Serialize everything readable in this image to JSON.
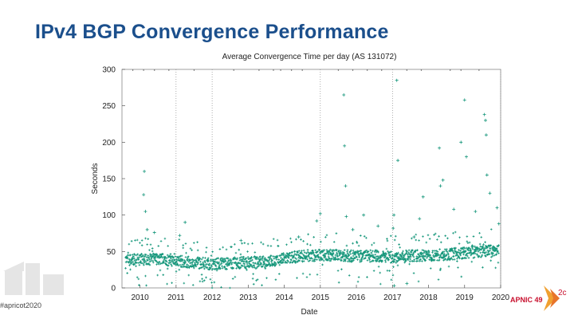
{
  "slide": {
    "title": "IPv4 BGP Convergence Performance",
    "hashtag": "#apricot2020",
    "logo_text": "APNIC 49",
    "corner_text": "2c",
    "accent_color": "#1b4f8c",
    "logo_color": "#c8102e"
  },
  "chart_data": {
    "type": "scatter",
    "title": "Average Convergence Time per day (AS 131072)",
    "xlabel": "Date",
    "ylabel": "Seconds",
    "xlim": [
      2009.5,
      2020.0
    ],
    "ylim": [
      0,
      300
    ],
    "x_ticks": [
      "2010",
      "2011",
      "2012",
      "2013",
      "2014",
      "2015",
      "2016",
      "2017",
      "2018",
      "2019",
      "2020"
    ],
    "y_ticks": [
      "0",
      "50",
      "100",
      "150",
      "200",
      "250",
      "300"
    ],
    "grid": "vertical dotted at selected year marks",
    "marker_color": "#14967a",
    "series": [
      {
        "name": "",
        "trend": [
          {
            "x": 2009.6,
            "y": 38
          },
          {
            "x": 2010.5,
            "y": 40
          },
          {
            "x": 2011.0,
            "y": 37
          },
          {
            "x": 2011.5,
            "y": 35
          },
          {
            "x": 2012.0,
            "y": 33
          },
          {
            "x": 2012.5,
            "y": 34
          },
          {
            "x": 2013.0,
            "y": 35
          },
          {
            "x": 2013.5,
            "y": 36
          },
          {
            "x": 2014.0,
            "y": 40
          },
          {
            "x": 2014.5,
            "y": 44
          },
          {
            "x": 2015.0,
            "y": 45
          },
          {
            "x": 2015.5,
            "y": 45
          },
          {
            "x": 2016.0,
            "y": 43
          },
          {
            "x": 2016.5,
            "y": 44
          },
          {
            "x": 2017.0,
            "y": 42
          },
          {
            "x": 2017.5,
            "y": 44
          },
          {
            "x": 2018.0,
            "y": 45
          },
          {
            "x": 2018.5,
            "y": 46
          },
          {
            "x": 2019.0,
            "y": 48
          },
          {
            "x": 2019.5,
            "y": 50
          },
          {
            "x": 2019.95,
            "y": 52
          }
        ],
        "outliers": [
          {
            "x": 2010.12,
            "y": 160
          },
          {
            "x": 2010.1,
            "y": 128
          },
          {
            "x": 2010.15,
            "y": 105
          },
          {
            "x": 2010.2,
            "y": 80
          },
          {
            "x": 2010.4,
            "y": 76
          },
          {
            "x": 2011.25,
            "y": 90
          },
          {
            "x": 2011.1,
            "y": 72
          },
          {
            "x": 2012.8,
            "y": 65
          },
          {
            "x": 2014.4,
            "y": 70
          },
          {
            "x": 2014.9,
            "y": 92
          },
          {
            "x": 2015.0,
            "y": 102
          },
          {
            "x": 2015.65,
            "y": 265
          },
          {
            "x": 2015.67,
            "y": 195
          },
          {
            "x": 2015.7,
            "y": 140
          },
          {
            "x": 2015.72,
            "y": 98
          },
          {
            "x": 2015.9,
            "y": 80
          },
          {
            "x": 2016.2,
            "y": 100
          },
          {
            "x": 2016.6,
            "y": 85
          },
          {
            "x": 2017.02,
            "y": 82
          },
          {
            "x": 2017.04,
            "y": 100
          },
          {
            "x": 2017.12,
            "y": 285
          },
          {
            "x": 2017.15,
            "y": 175
          },
          {
            "x": 2017.6,
            "y": 70
          },
          {
            "x": 2017.75,
            "y": 95
          },
          {
            "x": 2017.85,
            "y": 125
          },
          {
            "x": 2018.3,
            "y": 192
          },
          {
            "x": 2018.33,
            "y": 140
          },
          {
            "x": 2018.4,
            "y": 148
          },
          {
            "x": 2018.7,
            "y": 108
          },
          {
            "x": 2018.9,
            "y": 200
          },
          {
            "x": 2019.0,
            "y": 258
          },
          {
            "x": 2019.05,
            "y": 180
          },
          {
            "x": 2019.3,
            "y": 105
          },
          {
            "x": 2019.55,
            "y": 238
          },
          {
            "x": 2019.58,
            "y": 230
          },
          {
            "x": 2019.6,
            "y": 210
          },
          {
            "x": 2019.62,
            "y": 155
          },
          {
            "x": 2019.7,
            "y": 130
          },
          {
            "x": 2019.9,
            "y": 110
          },
          {
            "x": 2019.95,
            "y": 88
          },
          {
            "x": 2017.05,
            "y": 3
          },
          {
            "x": 2017.4,
            "y": 6
          }
        ]
      }
    ]
  }
}
